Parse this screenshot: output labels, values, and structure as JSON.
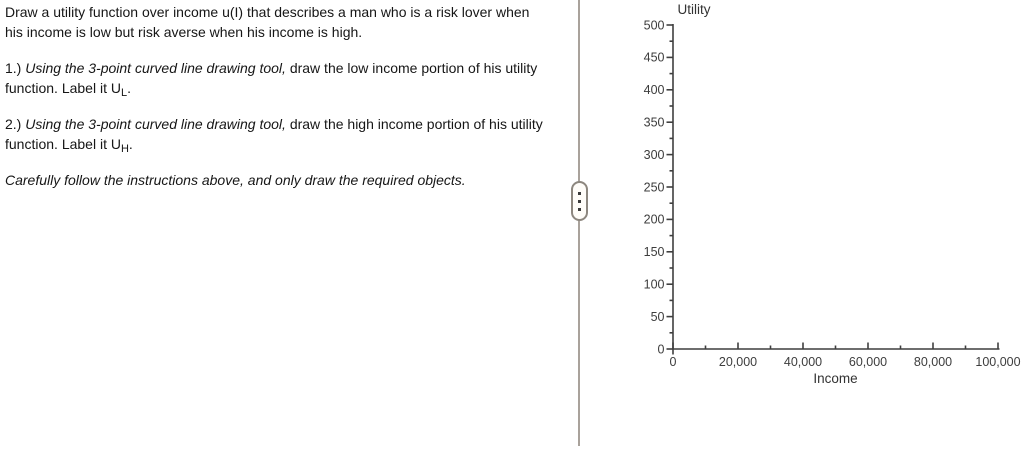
{
  "instructions": {
    "paragraphs": [
      {
        "segments": [
          {
            "text": "Draw a utility function over income u(I) that describes a man who is a risk lover when his income is low but risk averse when his income is high.",
            "style": "normal"
          }
        ]
      },
      {
        "segments": [
          {
            "text": "1.) ",
            "style": "normal"
          },
          {
            "text": "Using the 3-point curved line drawing tool,",
            "style": "italic"
          },
          {
            "text": " draw the low income portion of his utility function. Label it U",
            "style": "normal"
          },
          {
            "text": "L",
            "style": "subscript"
          },
          {
            "text": ".",
            "style": "normal"
          }
        ]
      },
      {
        "segments": [
          {
            "text": "2.) ",
            "style": "normal"
          },
          {
            "text": "Using the 3-point curved line drawing tool,",
            "style": "italic"
          },
          {
            "text": " draw the high income portion of his utility function. Label it U",
            "style": "normal"
          },
          {
            "text": "H",
            "style": "subscript"
          },
          {
            "text": ".",
            "style": "normal"
          }
        ]
      },
      {
        "segments": [
          {
            "text": "Carefully follow the instructions above, and only draw the required objects.",
            "style": "italic"
          }
        ]
      }
    ]
  },
  "divider": {
    "handle_icon": "vertical-ellipsis-drag-handle"
  },
  "chart_data": {
    "type": "line",
    "series": [],
    "title": "",
    "xlabel": "Income",
    "ylabel": "Utility",
    "xlim": [
      0,
      100000
    ],
    "ylim": [
      0,
      500
    ],
    "x_major_ticks": [
      0,
      20000,
      40000,
      60000,
      80000,
      100000
    ],
    "x_tick_labels": [
      "0",
      "20,000",
      "40,000",
      "60,000",
      "80,000",
      "100,000"
    ],
    "x_minor_step": 10000,
    "y_major_ticks": [
      0,
      50,
      100,
      150,
      200,
      250,
      300,
      350,
      400,
      450,
      500
    ],
    "y_tick_labels": [
      "0",
      "50",
      "100",
      "150",
      "200",
      "250",
      "300",
      "350",
      "400",
      "450",
      "500"
    ],
    "y_minor_step": 25,
    "grid": false,
    "legend_position": "none"
  },
  "colors": {
    "background": "#ffffff",
    "body_text": "#161616",
    "axis": "#3f3f3f",
    "tick_text": "#3d3d3d",
    "divider_line": "#a9a29b",
    "handle_border": "#8d877f",
    "handle_fill": "#fffdf9",
    "handle_dots": "#3a3a3a"
  }
}
